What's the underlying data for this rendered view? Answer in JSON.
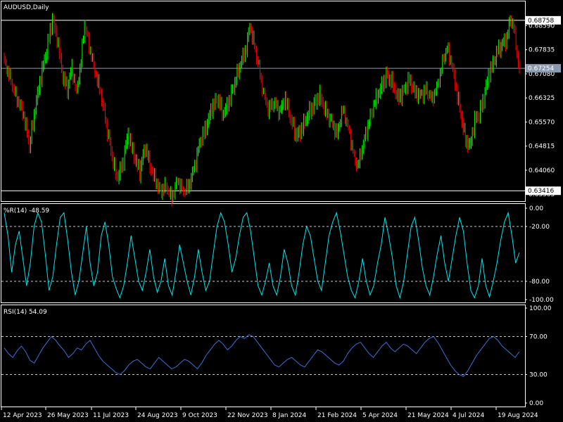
{
  "chart_data": [
    {
      "type": "candlestick",
      "symbol_label": "AUDUSD,Daily",
      "price_ticks": [
        "0.68758",
        "0.68590",
        "0.67835",
        "0.67080",
        "0.66325",
        "0.65570",
        "0.64815",
        "0.64060",
        "0.63416",
        "0.63305"
      ],
      "price_tick_values": [
        0.68758,
        0.6859,
        0.67835,
        0.6708,
        0.66325,
        0.6557,
        0.64815,
        0.6406,
        0.63416,
        0.63305
      ],
      "ylim": [
        0.6309,
        0.6935
      ],
      "horizontal_levels": [
        {
          "value": 0.68758,
          "label": "0.68758"
        },
        {
          "value": 0.63416,
          "label": "0.63416"
        }
      ],
      "current_price": {
        "value": 0.67254,
        "label": "0.67254"
      },
      "up_color": "#00ff00",
      "down_color": "#ff0000",
      "close_path": [
        [
          0,
          0.675
        ],
        [
          5,
          0.67
        ],
        [
          10,
          0.664
        ],
        [
          15,
          0.66
        ],
        [
          18,
          0.656
        ],
        [
          22,
          0.648
        ],
        [
          27,
          0.66
        ],
        [
          32,
          0.67
        ],
        [
          37,
          0.678
        ],
        [
          42,
          0.688
        ],
        [
          46,
          0.682
        ],
        [
          51,
          0.67
        ],
        [
          55,
          0.666
        ],
        [
          59,
          0.673
        ],
        [
          63,
          0.665
        ],
        [
          67,
          0.675
        ],
        [
          70,
          0.687
        ],
        [
          74,
          0.68
        ],
        [
          79,
          0.672
        ],
        [
          84,
          0.665
        ],
        [
          89,
          0.655
        ],
        [
          94,
          0.645
        ],
        [
          98,
          0.638
        ],
        [
          103,
          0.642
        ],
        [
          108,
          0.652
        ],
        [
          113,
          0.645
        ],
        [
          118,
          0.64
        ],
        [
          123,
          0.648
        ],
        [
          127,
          0.642
        ],
        [
          131,
          0.638
        ],
        [
          136,
          0.634
        ],
        [
          141,
          0.636
        ],
        [
          146,
          0.632
        ],
        [
          151,
          0.638
        ],
        [
          156,
          0.634
        ],
        [
          161,
          0.636
        ],
        [
          166,
          0.642
        ],
        [
          171,
          0.65
        ],
        [
          176,
          0.654
        ],
        [
          181,
          0.66
        ],
        [
          186,
          0.663
        ],
        [
          191,
          0.658
        ],
        [
          196,
          0.662
        ],
        [
          201,
          0.668
        ],
        [
          206,
          0.674
        ],
        [
          211,
          0.679
        ],
        [
          214,
          0.686
        ],
        [
          218,
          0.68
        ],
        [
          222,
          0.673
        ],
        [
          226,
          0.665
        ],
        [
          230,
          0.66
        ],
        [
          235,
          0.662
        ],
        [
          240,
          0.659
        ],
        [
          245,
          0.663
        ],
        [
          250,
          0.656
        ],
        [
          255,
          0.651
        ],
        [
          260,
          0.654
        ],
        [
          265,
          0.658
        ],
        [
          270,
          0.661
        ],
        [
          275,
          0.664
        ],
        [
          280,
          0.659
        ],
        [
          285,
          0.656
        ],
        [
          290,
          0.652
        ],
        [
          295,
          0.66
        ],
        [
          300,
          0.654
        ],
        [
          305,
          0.645
        ],
        [
          308,
          0.642
        ],
        [
          313,
          0.649
        ],
        [
          318,
          0.656
        ],
        [
          323,
          0.662
        ],
        [
          328,
          0.666
        ],
        [
          333,
          0.67
        ],
        [
          338,
          0.668
        ],
        [
          343,
          0.663
        ],
        [
          348,
          0.665
        ],
        [
          353,
          0.669
        ],
        [
          358,
          0.665
        ],
        [
          363,
          0.664
        ],
        [
          368,
          0.666
        ],
        [
          373,
          0.663
        ],
        [
          378,
          0.668
        ],
        [
          383,
          0.676
        ],
        [
          386,
          0.679
        ],
        [
          390,
          0.674
        ],
        [
          393,
          0.668
        ],
        [
          398,
          0.658
        ],
        [
          402,
          0.65
        ],
        [
          406,
          0.648
        ],
        [
          410,
          0.656
        ],
        [
          414,
          0.658
        ],
        [
          418,
          0.663
        ],
        [
          422,
          0.67
        ],
        [
          426,
          0.674
        ],
        [
          430,
          0.678
        ],
        [
          434,
          0.68
        ],
        [
          438,
          0.682
        ],
        [
          441,
          0.688
        ],
        [
          444,
          0.686
        ],
        [
          446,
          0.68
        ],
        [
          449,
          0.672
        ]
      ]
    },
    {
      "type": "line",
      "indicator_label": "%R(14) -48.59",
      "name": "%R(14)",
      "last_value": -48.59,
      "ticks": [
        "0.00",
        "-20.00",
        "-80.00",
        "-100.00"
      ],
      "tick_values": [
        0,
        -20,
        -80,
        -100
      ],
      "levels": [
        -20,
        -80
      ],
      "ylim": [
        -100,
        0
      ],
      "line_color": "#00e5ee",
      "values": [
        -5,
        -30,
        -70,
        -40,
        -25,
        -55,
        -85,
        -60,
        -20,
        -5,
        -15,
        -50,
        -90,
        -75,
        -40,
        -10,
        -5,
        -35,
        -70,
        -95,
        -80,
        -50,
        -20,
        -60,
        -85,
        -70,
        -30,
        -15,
        -40,
        -75,
        -88,
        -98,
        -85,
        -60,
        -30,
        -55,
        -80,
        -90,
        -70,
        -45,
        -75,
        -92,
        -80,
        -55,
        -85,
        -95,
        -70,
        -40,
        -60,
        -80,
        -95,
        -75,
        -45,
        -70,
        -90,
        -80,
        -50,
        -20,
        -5,
        -15,
        -40,
        -70,
        -55,
        -30,
        -10,
        -5,
        -25,
        -55,
        -85,
        -95,
        -80,
        -60,
        -85,
        -95,
        -75,
        -45,
        -60,
        -85,
        -95,
        -70,
        -40,
        -20,
        -30,
        -55,
        -80,
        -90,
        -60,
        -30,
        -15,
        -5,
        -25,
        -50,
        -75,
        -90,
        -98,
        -80,
        -55,
        -80,
        -95,
        -85,
        -60,
        -40,
        -10,
        -30,
        -55,
        -85,
        -98,
        -80,
        -50,
        -20,
        -10,
        -35,
        -65,
        -85,
        -95,
        -75,
        -50,
        -30,
        -60,
        -80,
        -55,
        -30,
        -10,
        -25,
        -60,
        -90,
        -98,
        -85,
        -55,
        -85,
        -97,
        -80,
        -60,
        -35,
        -15,
        -5,
        -30,
        -60,
        -48.59
      ]
    },
    {
      "type": "line",
      "indicator_label": "RSI(14) 54.09",
      "name": "RSI(14)",
      "last_value": 54.09,
      "ticks": [
        "100.00",
        "70.00",
        "30.00",
        "0.00"
      ],
      "tick_values": [
        100,
        70,
        30,
        0
      ],
      "levels": [
        70,
        30
      ],
      "ylim": [
        0,
        100
      ],
      "line_color": "#3a6fd8",
      "values": [
        58,
        52,
        48,
        55,
        60,
        54,
        45,
        42,
        50,
        58,
        64,
        70,
        66,
        60,
        55,
        48,
        52,
        58,
        56,
        62,
        66,
        58,
        50,
        44,
        40,
        36,
        32,
        30,
        34,
        40,
        44,
        46,
        42,
        38,
        36,
        42,
        48,
        44,
        40,
        36,
        38,
        42,
        46,
        44,
        40,
        36,
        42,
        50,
        56,
        62,
        66,
        62,
        56,
        60,
        66,
        70,
        68,
        72,
        70,
        64,
        58,
        52,
        46,
        40,
        38,
        42,
        46,
        48,
        44,
        40,
        38,
        44,
        50,
        56,
        54,
        50,
        46,
        42,
        40,
        44,
        52,
        58,
        62,
        64,
        58,
        52,
        48,
        54,
        60,
        64,
        58,
        54,
        58,
        62,
        60,
        56,
        52,
        58,
        64,
        68,
        70,
        64,
        56,
        48,
        40,
        34,
        30,
        28,
        34,
        42,
        50,
        56,
        62,
        68,
        70,
        66,
        60,
        56,
        52,
        48,
        54
      ]
    }
  ],
  "x_axis": {
    "ticks": [
      "12 Apr 2023",
      "26 May 2023",
      "11 Jul 2023",
      "24 Aug 2023",
      "9 Oct 2023",
      "22 Nov 2023",
      "8 Jan 2024",
      "21 Feb 2024",
      "5 Apr 2024",
      "21 May 2024",
      "4 Jul 2024",
      "19 Aug 2024"
    ]
  },
  "colors": {
    "background": "#000000",
    "grid_dashed": "#c8c8c8",
    "panel_border": "#ffffff",
    "axis_text": "#ffffff"
  }
}
